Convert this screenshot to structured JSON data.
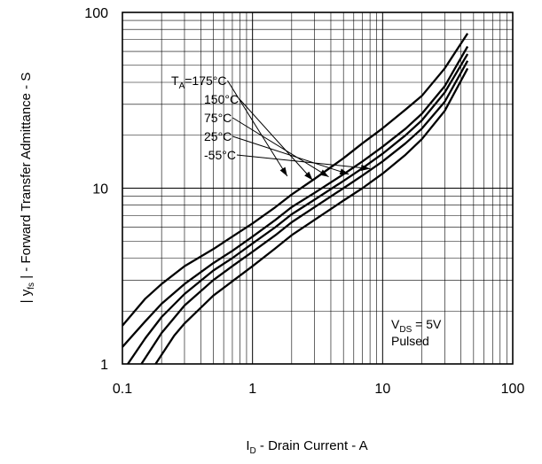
{
  "chart_data": {
    "type": "line",
    "x_scale": "log",
    "y_scale": "log",
    "xlim": [
      0.1,
      100
    ],
    "ylim": [
      1,
      100
    ],
    "grid": true,
    "x_ticks": [
      {
        "value": 0.1,
        "label": "0.1"
      },
      {
        "value": 1,
        "label": "1"
      },
      {
        "value": 10,
        "label": "10"
      },
      {
        "value": 100,
        "label": "100"
      }
    ],
    "y_ticks": [
      {
        "value": 1,
        "label": "1"
      },
      {
        "value": 10,
        "label": "10"
      },
      {
        "value": 100,
        "label": "100"
      }
    ],
    "xlabel": {
      "main": "I",
      "sub": "D",
      "rest": " - Drain Current - A"
    },
    "ylabel": {
      "pre": "| y",
      "sub": "fs",
      "rest": " | - Forward Transfer Admittance - S"
    },
    "annotation": {
      "line1_main": "V",
      "line1_sub": "DS",
      "line1_rest": " = 5V",
      "line2": "Pulsed"
    },
    "series": [
      {
        "name": "175°C",
        "label_main": "T",
        "label_sub": "A",
        "label_rest": "=175°C",
        "label_anchor": {
          "x": 1.85,
          "y": 11.7
        },
        "points": [
          [
            0.1,
            1.65
          ],
          [
            0.15,
            2.35
          ],
          [
            0.2,
            2.85
          ],
          [
            0.3,
            3.6
          ],
          [
            0.5,
            4.5
          ],
          [
            0.7,
            5.3
          ],
          [
            1,
            6.3
          ],
          [
            1.5,
            7.8
          ],
          [
            2,
            9.2
          ],
          [
            3,
            11.3
          ],
          [
            5,
            14.8
          ],
          [
            7,
            18
          ],
          [
            10,
            21.9
          ],
          [
            15,
            28
          ],
          [
            20,
            33.5
          ],
          [
            30,
            48
          ],
          [
            45,
            76
          ]
        ]
      },
      {
        "name": "150°C",
        "label_main": "150°C",
        "label_sub": "",
        "label_rest": "",
        "label_anchor": {
          "x": 2.9,
          "y": 11.1
        },
        "points": [
          [
            0.1,
            1.25
          ],
          [
            0.15,
            1.75
          ],
          [
            0.2,
            2.2
          ],
          [
            0.3,
            2.85
          ],
          [
            0.5,
            3.75
          ],
          [
            0.7,
            4.4
          ],
          [
            1,
            5.3
          ],
          [
            1.5,
            6.6
          ],
          [
            2,
            7.8
          ],
          [
            3,
            9.4
          ],
          [
            5,
            12
          ],
          [
            7,
            14.2
          ],
          [
            10,
            17.2
          ],
          [
            15,
            21.8
          ],
          [
            20,
            26.5
          ],
          [
            30,
            38
          ],
          [
            45,
            64
          ]
        ]
      },
      {
        "name": "75°C",
        "label_main": "75°C",
        "label_sub": "",
        "label_rest": "",
        "label_anchor": {
          "x": 3.85,
          "y": 11.6
        },
        "points": [
          [
            0.11,
            1.0
          ],
          [
            0.15,
            1.4
          ],
          [
            0.2,
            1.85
          ],
          [
            0.3,
            2.5
          ],
          [
            0.5,
            3.4
          ],
          [
            0.7,
            4.0
          ],
          [
            1,
            4.85
          ],
          [
            1.5,
            6.0
          ],
          [
            2,
            7.1
          ],
          [
            3,
            8.6
          ],
          [
            5,
            11
          ],
          [
            7,
            13
          ],
          [
            10,
            15.7
          ],
          [
            15,
            20
          ],
          [
            20,
            24.3
          ],
          [
            30,
            35
          ],
          [
            45,
            58
          ]
        ]
      },
      {
        "name": "25°C",
        "label_main": "25°C",
        "label_sub": "",
        "label_rest": "",
        "label_anchor": {
          "x": 5.5,
          "y": 12.0
        },
        "points": [
          [
            0.14,
            1.0
          ],
          [
            0.2,
            1.5
          ],
          [
            0.3,
            2.15
          ],
          [
            0.5,
            3.0
          ],
          [
            0.7,
            3.6
          ],
          [
            1,
            4.35
          ],
          [
            1.5,
            5.4
          ],
          [
            2,
            6.4
          ],
          [
            3,
            7.8
          ],
          [
            5,
            10
          ],
          [
            7,
            11.8
          ],
          [
            10,
            14.2
          ],
          [
            15,
            18
          ],
          [
            20,
            21.8
          ],
          [
            30,
            31
          ],
          [
            45,
            53
          ]
        ]
      },
      {
        "name": "-55°C",
        "label_main": "-55°C",
        "label_sub": "",
        "label_rest": "",
        "label_anchor": {
          "x": 8.0,
          "y": 12.9
        },
        "points": [
          [
            0.18,
            1.0
          ],
          [
            0.25,
            1.45
          ],
          [
            0.3,
            1.7
          ],
          [
            0.5,
            2.45
          ],
          [
            0.7,
            2.95
          ],
          [
            1,
            3.6
          ],
          [
            1.5,
            4.55
          ],
          [
            2,
            5.4
          ],
          [
            3,
            6.6
          ],
          [
            5,
            8.5
          ],
          [
            7,
            10
          ],
          [
            10,
            12.1
          ],
          [
            15,
            15.5
          ],
          [
            20,
            19
          ],
          [
            30,
            27.5
          ],
          [
            45,
            48
          ]
        ]
      }
    ]
  }
}
